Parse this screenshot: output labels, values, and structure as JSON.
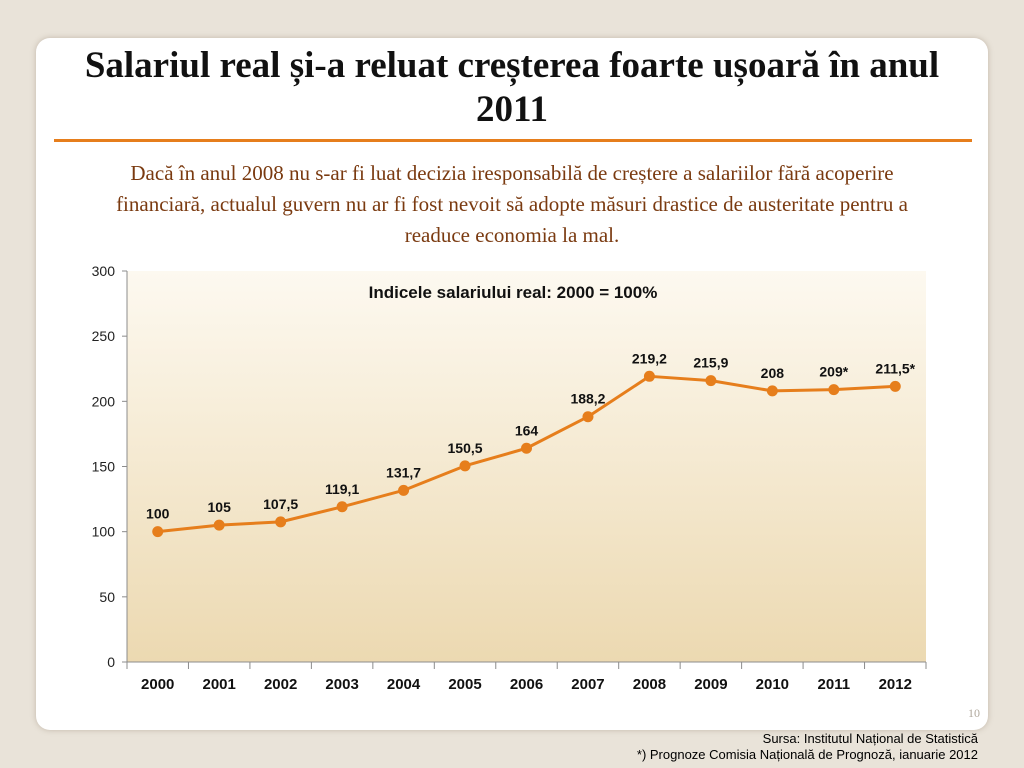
{
  "slide": {
    "title": "Salariul real și-a reluat creșterea foarte ușoară în anul 2011",
    "subtitle": "Dacă în anul 2008 nu s-ar fi luat decizia iresponsabilă de creștere a salariilor fără acoperire financiară, actualul guvern nu ar fi fost nevoit să adopte măsuri drastice de austeritate pentru a readuce economia la mal.",
    "page_number": "10",
    "source_line_1": "Sursa: Institutul Național de Statistică",
    "source_line_2": "*) Prognoze Comisia Națională de Prognoză, ianuarie 2012"
  },
  "chart_data": {
    "type": "line",
    "title": "Indicele salariului real: 2000 = 100%",
    "categories": [
      "2000",
      "2001",
      "2002",
      "2003",
      "2004",
      "2005",
      "2006",
      "2007",
      "2008",
      "2009",
      "2010",
      "2011",
      "2012"
    ],
    "values": [
      100,
      105,
      107.5,
      119.1,
      131.7,
      150.5,
      164,
      188.2,
      219.2,
      215.9,
      208,
      209,
      211.5
    ],
    "data_labels": [
      "100",
      "105",
      "107,5",
      "119,1",
      "131,7",
      "150,5",
      "164",
      "188,2",
      "219,2",
      "215,9",
      "208",
      "209*",
      "211,5*"
    ],
    "yticks": [
      "0",
      "50",
      "100",
      "150",
      "200",
      "250",
      "300"
    ],
    "ylim": [
      0,
      300
    ],
    "xlabel": "",
    "ylabel": "",
    "grid": false,
    "legend": "none",
    "line_color": "#e67e1c",
    "plot_background_top": "#fdf9f0",
    "plot_background_bottom": "#ecd9b1"
  }
}
